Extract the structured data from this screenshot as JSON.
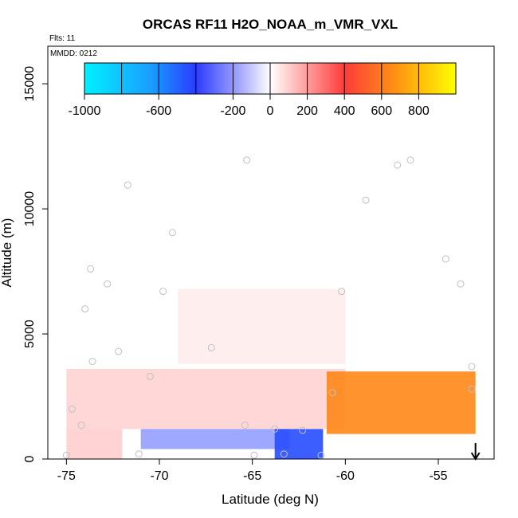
{
  "chart_data": {
    "type": "heatmap",
    "title": "ORCAS RF11 H2O_NOAA_m_VMR_VXL",
    "flights_label": "Flts: 11",
    "date_label": "MMDD: 0212",
    "xlabel": "Latitude (deg N)",
    "ylabel": "Altitude (m)",
    "xlim": [
      -76.0,
      -52.0
    ],
    "ylim": [
      0,
      16500
    ],
    "x_ticks": [
      -75,
      -70,
      -65,
      -60,
      -55
    ],
    "y_ticks": [
      0,
      5000,
      10000,
      15000
    ],
    "colorbar": {
      "range": [
        -1000,
        1000
      ],
      "ticks": [
        -1000,
        -600,
        -200,
        0,
        200,
        400,
        600,
        800
      ],
      "colors": {
        "min": "#00ffff",
        "mid_low": "#2a3cff",
        "zero": "#ffffff",
        "mid_high": "#ff2a2a",
        "max": "#ffff00"
      }
    },
    "regions": [
      {
        "name": "light-positive-upper-plume",
        "value": 40,
        "x": [
          -69,
          -60
        ],
        "y": [
          3800,
          6800
        ]
      },
      {
        "name": "light-positive-boundary-layer",
        "value": 90,
        "x": [
          -75,
          -60
        ],
        "y": [
          1200,
          3600
        ]
      },
      {
        "name": "light-positive-low-west",
        "value": 100,
        "x": [
          -75,
          -72
        ],
        "y": [
          0,
          1200
        ]
      },
      {
        "name": "negative-lower-layer",
        "value": -200,
        "x": [
          -71,
          -63
        ],
        "y": [
          400,
          1200
        ]
      },
      {
        "name": "negative-core",
        "value": -450,
        "x": [
          -63.8,
          -61.2
        ],
        "y": [
          0,
          1200
        ]
      },
      {
        "name": "strong-positive-plume",
        "value": 650,
        "x": [
          -61,
          -53
        ],
        "y": [
          1000,
          3500
        ]
      }
    ],
    "sample_points": [
      {
        "x": -75.0,
        "y": 150
      },
      {
        "x": -74.7,
        "y": 2000
      },
      {
        "x": -74.2,
        "y": 1350
      },
      {
        "x": -74.0,
        "y": 6000
      },
      {
        "x": -73.7,
        "y": 7600
      },
      {
        "x": -73.6,
        "y": 3900
      },
      {
        "x": -72.8,
        "y": 7000
      },
      {
        "x": -72.2,
        "y": 4300
      },
      {
        "x": -71.7,
        "y": 10950
      },
      {
        "x": -71.1,
        "y": 200
      },
      {
        "x": -70.5,
        "y": 3300
      },
      {
        "x": -69.3,
        "y": 9050
      },
      {
        "x": -69.8,
        "y": 6700
      },
      {
        "x": -67.2,
        "y": 4450
      },
      {
        "x": -65.3,
        "y": 11950
      },
      {
        "x": -65.4,
        "y": 1350
      },
      {
        "x": -64.9,
        "y": 150
      },
      {
        "x": -63.8,
        "y": 1200
      },
      {
        "x": -63.3,
        "y": 200
      },
      {
        "x": -62.3,
        "y": 1150
      },
      {
        "x": -61.3,
        "y": 150
      },
      {
        "x": -60.7,
        "y": 2650
      },
      {
        "x": -60.2,
        "y": 6700
      },
      {
        "x": -58.9,
        "y": 10350
      },
      {
        "x": -57.2,
        "y": 11750
      },
      {
        "x": -56.5,
        "y": 11950
      },
      {
        "x": -54.6,
        "y": 8000
      },
      {
        "x": -53.8,
        "y": 7000
      },
      {
        "x": -53.2,
        "y": 3700
      },
      {
        "x": -53.2,
        "y": 2800
      }
    ],
    "arrow_marker": {
      "x": -53.0,
      "direction": "down"
    },
    "grid": false
  }
}
